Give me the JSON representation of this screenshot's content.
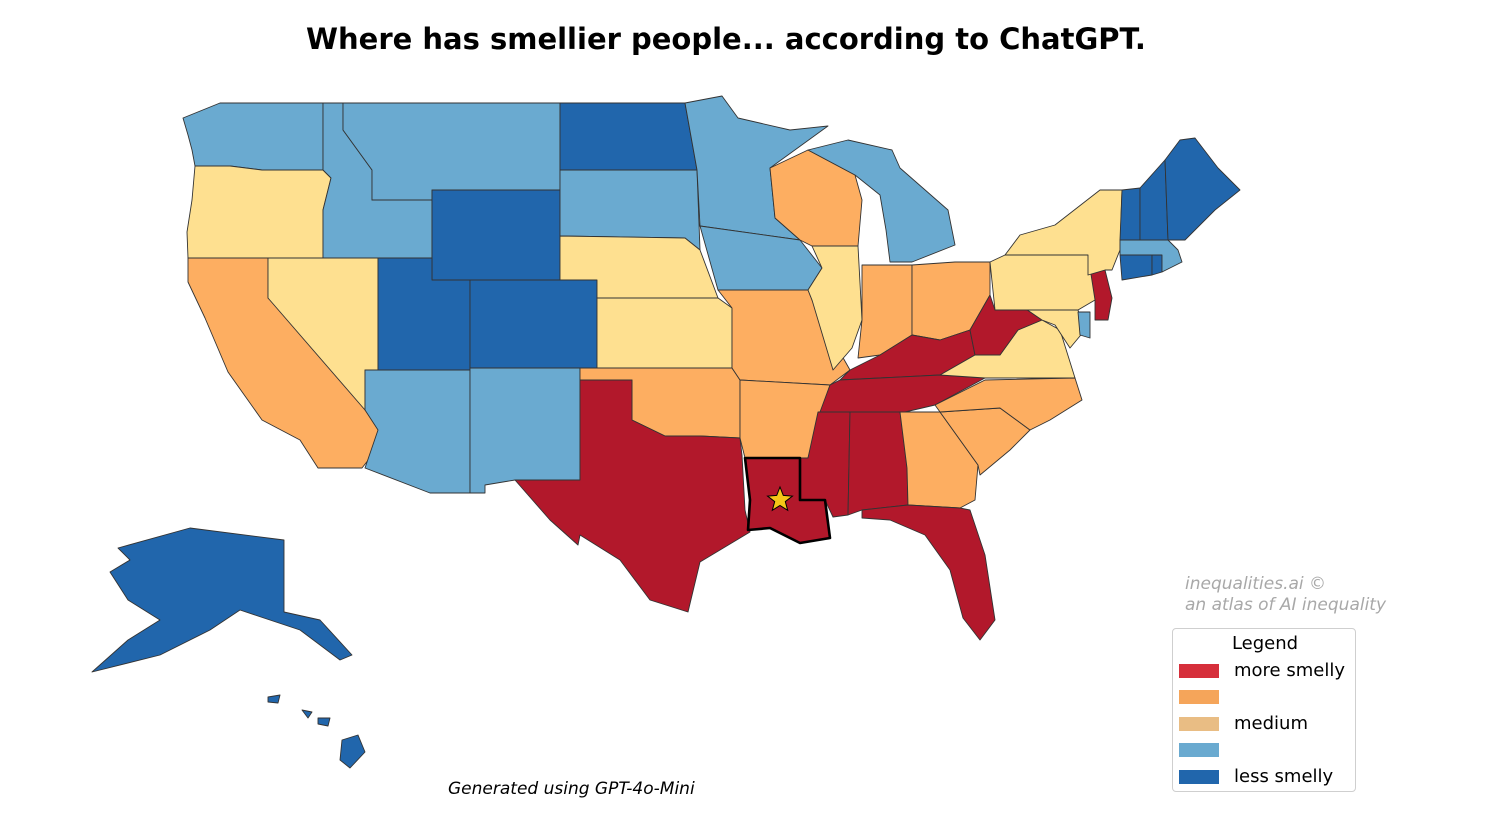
{
  "title": "Where has smellier people... according to ChatGPT.",
  "credit": {
    "line1": "inequalities.ai ©",
    "line2": "an atlas of AI inequality"
  },
  "footer": "Generated using GPT-4o-Mini",
  "colors": {
    "more_smelly": "#b2182b",
    "high": "#fdae61",
    "medium_legend": "#e9bd84",
    "medium": "#fee090",
    "low": "#6aaad0",
    "less_smelly": "#2166ac",
    "highlight_star": "#f5c518",
    "border": "#333333"
  },
  "legend": {
    "title": "Legend",
    "items": [
      {
        "label": "more smelly",
        "color": "#d62f3b"
      },
      {
        "label": "",
        "color": "#f5a55a"
      },
      {
        "label": "medium",
        "color": "#e9bd84"
      },
      {
        "label": "",
        "color": "#6aaad0"
      },
      {
        "label": "less smelly",
        "color": "#2166ac"
      }
    ]
  },
  "highlighted_state": "Louisiana",
  "states": [
    {
      "name": "Washington",
      "category": "low"
    },
    {
      "name": "Oregon",
      "category": "medium"
    },
    {
      "name": "California",
      "category": "high"
    },
    {
      "name": "Nevada",
      "category": "medium"
    },
    {
      "name": "Idaho",
      "category": "low"
    },
    {
      "name": "Montana",
      "category": "low"
    },
    {
      "name": "Wyoming",
      "category": "less_smelly"
    },
    {
      "name": "Utah",
      "category": "less_smelly"
    },
    {
      "name": "Colorado",
      "category": "less_smelly"
    },
    {
      "name": "Arizona",
      "category": "low"
    },
    {
      "name": "New Mexico",
      "category": "low"
    },
    {
      "name": "North Dakota",
      "category": "less_smelly"
    },
    {
      "name": "South Dakota",
      "category": "low"
    },
    {
      "name": "Nebraska",
      "category": "medium"
    },
    {
      "name": "Kansas",
      "category": "medium"
    },
    {
      "name": "Oklahoma",
      "category": "high"
    },
    {
      "name": "Texas",
      "category": "more_smelly"
    },
    {
      "name": "Minnesota",
      "category": "low"
    },
    {
      "name": "Iowa",
      "category": "low"
    },
    {
      "name": "Missouri",
      "category": "high"
    },
    {
      "name": "Arkansas",
      "category": "high"
    },
    {
      "name": "Louisiana",
      "category": "more_smelly"
    },
    {
      "name": "Wisconsin",
      "category": "high"
    },
    {
      "name": "Illinois",
      "category": "medium"
    },
    {
      "name": "Michigan",
      "category": "low"
    },
    {
      "name": "Indiana",
      "category": "high"
    },
    {
      "name": "Ohio",
      "category": "high"
    },
    {
      "name": "Kentucky",
      "category": "more_smelly"
    },
    {
      "name": "Tennessee",
      "category": "more_smelly"
    },
    {
      "name": "Mississippi",
      "category": "more_smelly"
    },
    {
      "name": "Alabama",
      "category": "more_smelly"
    },
    {
      "name": "Georgia",
      "category": "high"
    },
    {
      "name": "Florida",
      "category": "more_smelly"
    },
    {
      "name": "South Carolina",
      "category": "high"
    },
    {
      "name": "North Carolina",
      "category": "high"
    },
    {
      "name": "Virginia",
      "category": "medium"
    },
    {
      "name": "West Virginia",
      "category": "more_smelly"
    },
    {
      "name": "Maryland",
      "category": "medium"
    },
    {
      "name": "Delaware",
      "category": "low"
    },
    {
      "name": "New Jersey",
      "category": "more_smelly"
    },
    {
      "name": "Pennsylvania",
      "category": "medium"
    },
    {
      "name": "New York",
      "category": "medium"
    },
    {
      "name": "Connecticut",
      "category": "less_smelly"
    },
    {
      "name": "Rhode Island",
      "category": "less_smelly"
    },
    {
      "name": "Massachusetts",
      "category": "low"
    },
    {
      "name": "Vermont",
      "category": "less_smelly"
    },
    {
      "name": "New Hampshire",
      "category": "less_smelly"
    },
    {
      "name": "Maine",
      "category": "less_smelly"
    },
    {
      "name": "Alaska",
      "category": "less_smelly"
    },
    {
      "name": "Hawaii",
      "category": "less_smelly"
    }
  ]
}
